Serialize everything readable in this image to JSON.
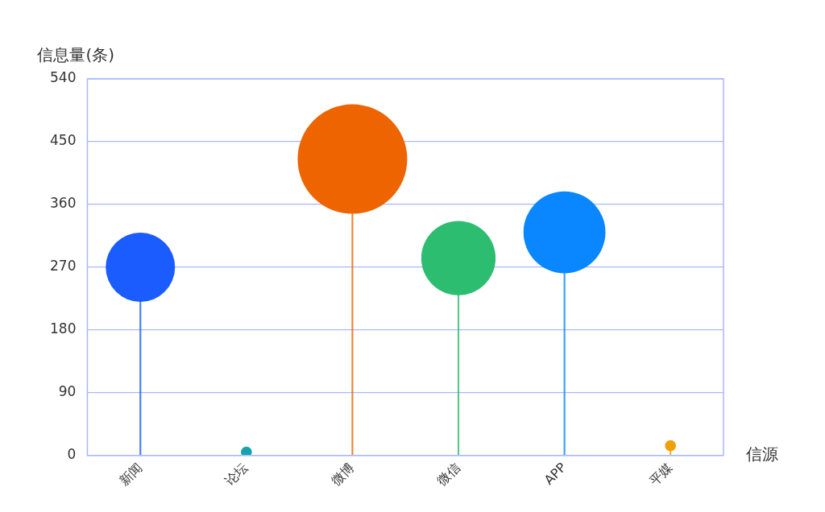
{
  "chart_data": {
    "type": "lollipop",
    "ylabel": "信息量(条)",
    "xlabel": "信源",
    "categories": [
      "新闻",
      "论坛",
      "微博",
      "微信",
      "APP",
      "平媒"
    ],
    "values": [
      270,
      5,
      425,
      283,
      320,
      14
    ],
    "sizes": [
      0.4,
      0.01,
      1,
      0.46,
      0.56,
      0.01
    ],
    "colors": [
      "#1a5cff",
      "#17a2b0",
      "#ee6400",
      "#2dbd70",
      "#0a87ff",
      "#f0a000"
    ],
    "ylim": [
      0,
      540
    ],
    "yticks": [
      0,
      90,
      180,
      270,
      360,
      450,
      540
    ],
    "grid": "y",
    "legend": false
  }
}
